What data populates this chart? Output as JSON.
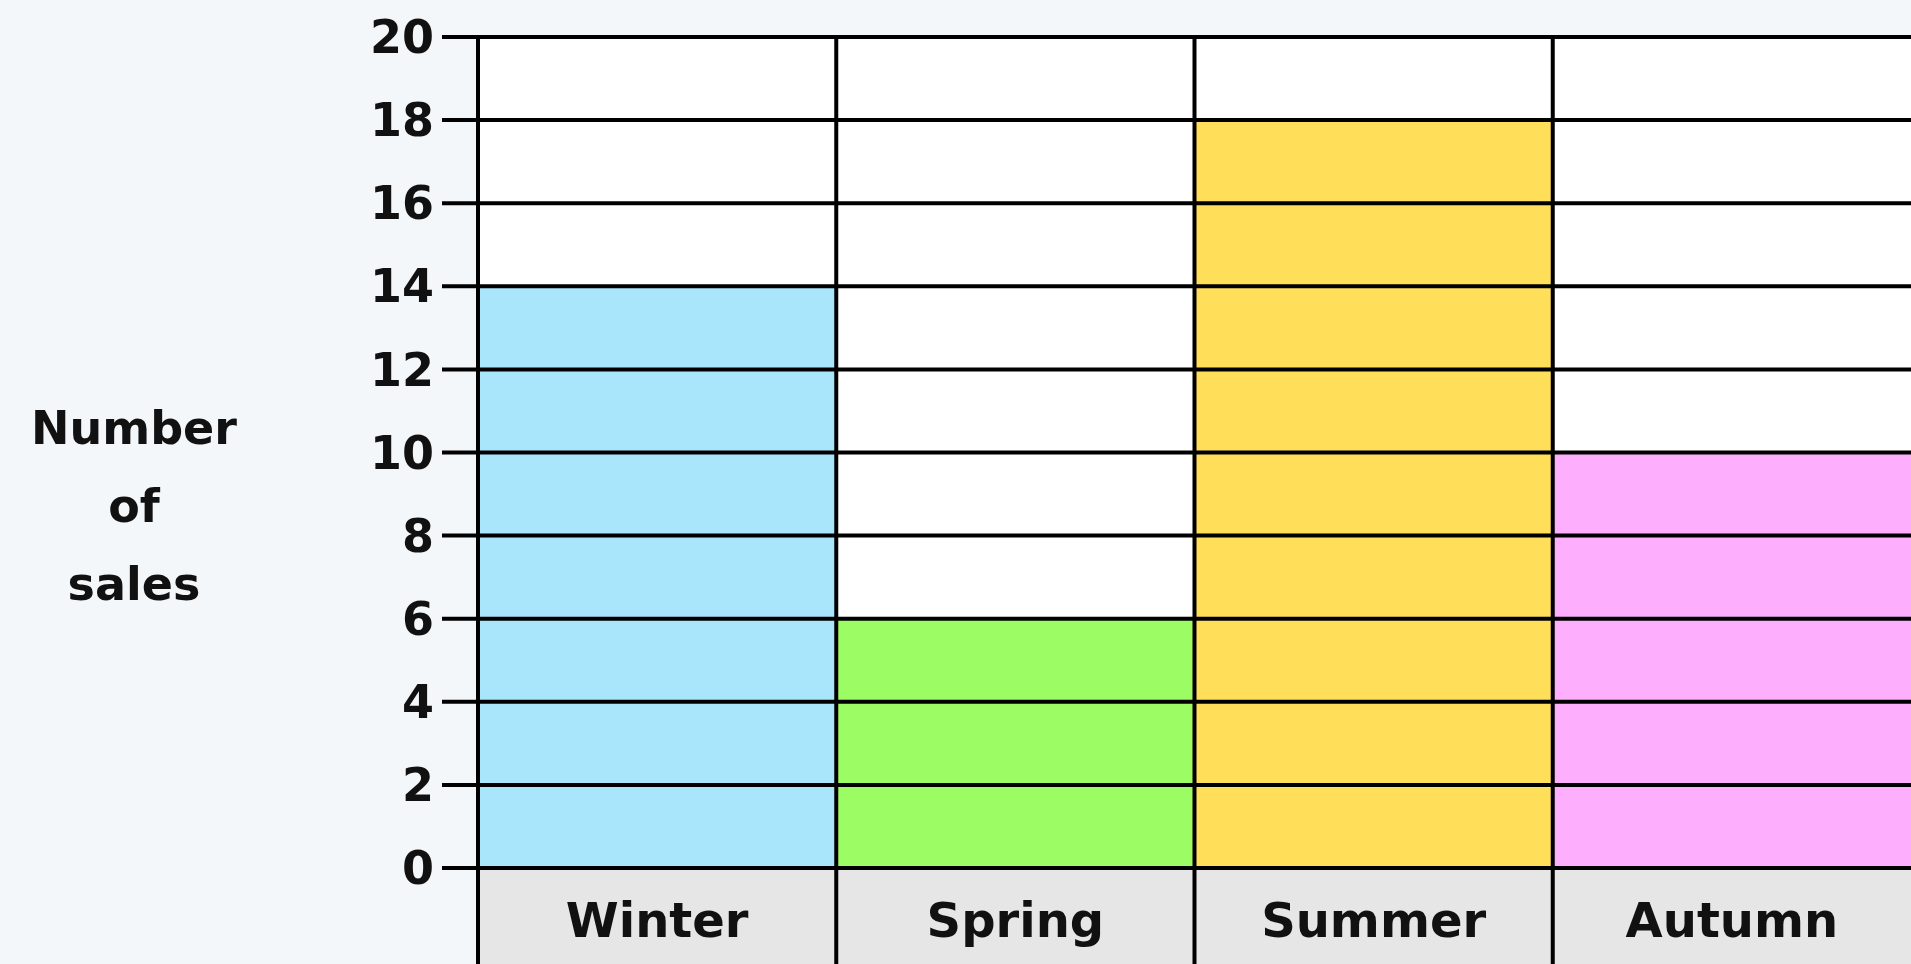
{
  "chart_data": {
    "type": "bar",
    "ylabel": "Number of sales",
    "categories": [
      "Winter",
      "Spring",
      "Summer",
      "Autumn"
    ],
    "values": [
      14,
      6,
      18,
      10
    ],
    "colors": [
      "#a9e6fc",
      "#9cfc64",
      "#ffde59",
      "#fdaefd"
    ],
    "ylim": [
      0,
      20
    ],
    "yticks": [
      0,
      2,
      4,
      6,
      8,
      10,
      12,
      14,
      16,
      18,
      20
    ],
    "grid": "y"
  }
}
